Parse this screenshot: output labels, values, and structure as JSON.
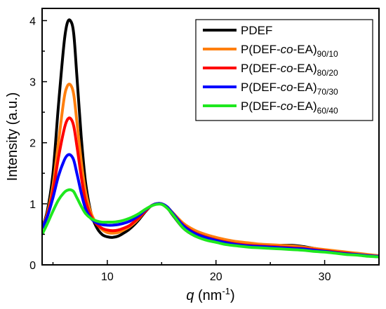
{
  "chart_data": {
    "type": "line",
    "xlabel": {
      "symbol": "q",
      "rest": " (nm",
      "sup": "-1",
      "close": ")"
    },
    "ylabel": "Intensity (a.u.)",
    "xlim": [
      4,
      35
    ],
    "ylim": [
      0,
      4.2
    ],
    "xticks": [
      10,
      20,
      30
    ],
    "xticks_minor": [
      5,
      15,
      25,
      35
    ],
    "yticks": [
      0,
      1,
      2,
      3,
      4
    ],
    "yticks_minor": [
      0.5,
      1.5,
      2.5,
      3.5
    ],
    "legend_position": "top-right",
    "series": [
      {
        "name": "PDEF",
        "legend_parts": [
          {
            "t": "PDEF"
          }
        ],
        "color": "#000000",
        "x": [
          4,
          4.5,
          5,
          5.5,
          6,
          6.3,
          6.6,
          6.9,
          7.2,
          7.6,
          8,
          8.5,
          9,
          9.5,
          10,
          10.5,
          11,
          11.5,
          12,
          12.5,
          13,
          13.5,
          14,
          14.5,
          15,
          15.5,
          16,
          17,
          18,
          19,
          20,
          21,
          22,
          23,
          24,
          25,
          26,
          27,
          28,
          29,
          30,
          31,
          32,
          33,
          34,
          35
        ],
        "y": [
          0.6,
          0.9,
          1.5,
          2.6,
          3.6,
          3.95,
          4.0,
          3.8,
          3.1,
          2.1,
          1.35,
          0.85,
          0.62,
          0.5,
          0.46,
          0.45,
          0.47,
          0.52,
          0.58,
          0.66,
          0.76,
          0.87,
          0.96,
          1.0,
          1.0,
          0.94,
          0.82,
          0.6,
          0.48,
          0.42,
          0.38,
          0.34,
          0.32,
          0.31,
          0.3,
          0.31,
          0.32,
          0.32,
          0.3,
          0.27,
          0.24,
          0.21,
          0.19,
          0.17,
          0.15,
          0.13
        ]
      },
      {
        "name": "P(DEF-co-EA)90/10",
        "legend_parts": [
          {
            "t": "P(DEF-"
          },
          {
            "t": "co",
            "italic": true
          },
          {
            "t": "-EA)"
          },
          {
            "t": "90/10",
            "sub": true
          }
        ],
        "color": "#ff7f0e",
        "x": [
          4,
          4.5,
          5,
          5.5,
          6,
          6.3,
          6.6,
          6.9,
          7.2,
          7.6,
          8,
          8.5,
          9,
          9.5,
          10,
          10.5,
          11,
          11.5,
          12,
          12.5,
          13,
          13.5,
          14,
          14.5,
          15,
          15.5,
          16,
          17,
          18,
          19,
          20,
          21,
          22,
          23,
          24,
          25,
          26,
          27,
          28,
          29,
          30,
          31,
          32,
          33,
          34,
          35
        ],
        "y": [
          0.6,
          0.85,
          1.3,
          2.0,
          2.7,
          2.92,
          2.95,
          2.8,
          2.35,
          1.7,
          1.2,
          0.85,
          0.68,
          0.58,
          0.53,
          0.52,
          0.53,
          0.57,
          0.62,
          0.69,
          0.78,
          0.88,
          0.96,
          1.0,
          1.0,
          0.95,
          0.86,
          0.68,
          0.57,
          0.5,
          0.45,
          0.41,
          0.38,
          0.36,
          0.34,
          0.33,
          0.32,
          0.31,
          0.29,
          0.27,
          0.25,
          0.23,
          0.21,
          0.19,
          0.17,
          0.15
        ]
      },
      {
        "name": "P(DEF-co-EA)80/20",
        "legend_parts": [
          {
            "t": "P(DEF-"
          },
          {
            "t": "co",
            "italic": true
          },
          {
            "t": "-EA)"
          },
          {
            "t": "80/20",
            "sub": true
          }
        ],
        "color": "#ff0000",
        "x": [
          4,
          4.5,
          5,
          5.5,
          6,
          6.3,
          6.6,
          6.9,
          7.2,
          7.6,
          8,
          8.5,
          9,
          9.5,
          10,
          10.5,
          11,
          11.5,
          12,
          12.5,
          13,
          13.5,
          14,
          14.5,
          15,
          15.5,
          16,
          17,
          18,
          19,
          20,
          21,
          22,
          23,
          24,
          25,
          26,
          27,
          28,
          29,
          30,
          31,
          32,
          33,
          34,
          35
        ],
        "y": [
          0.6,
          0.82,
          1.2,
          1.75,
          2.2,
          2.37,
          2.4,
          2.28,
          1.95,
          1.45,
          1.05,
          0.8,
          0.67,
          0.6,
          0.57,
          0.56,
          0.57,
          0.6,
          0.64,
          0.71,
          0.79,
          0.88,
          0.96,
          1.0,
          1.0,
          0.95,
          0.85,
          0.65,
          0.53,
          0.46,
          0.41,
          0.37,
          0.34,
          0.32,
          0.31,
          0.3,
          0.29,
          0.28,
          0.27,
          0.25,
          0.23,
          0.21,
          0.19,
          0.17,
          0.15,
          0.14
        ]
      },
      {
        "name": "P(DEF-co-EA)70/30",
        "legend_parts": [
          {
            "t": "P(DEF-"
          },
          {
            "t": "co",
            "italic": true
          },
          {
            "t": "-EA)"
          },
          {
            "t": "70/30",
            "sub": true
          }
        ],
        "color": "#0000ff",
        "x": [
          4,
          4.5,
          5,
          5.5,
          6,
          6.3,
          6.6,
          6.9,
          7.2,
          7.6,
          8,
          8.5,
          9,
          9.5,
          10,
          10.5,
          11,
          11.5,
          12,
          12.5,
          13,
          13.5,
          14,
          14.5,
          15,
          15.5,
          16,
          17,
          18,
          19,
          20,
          21,
          22,
          23,
          24,
          25,
          26,
          27,
          28,
          29,
          30,
          31,
          32,
          33,
          34,
          35
        ],
        "y": [
          0.6,
          0.8,
          1.1,
          1.45,
          1.7,
          1.79,
          1.8,
          1.72,
          1.5,
          1.18,
          0.92,
          0.76,
          0.69,
          0.66,
          0.65,
          0.65,
          0.66,
          0.68,
          0.71,
          0.76,
          0.82,
          0.9,
          0.96,
          1.0,
          1.0,
          0.95,
          0.85,
          0.64,
          0.52,
          0.45,
          0.4,
          0.36,
          0.33,
          0.31,
          0.3,
          0.29,
          0.28,
          0.27,
          0.26,
          0.24,
          0.22,
          0.2,
          0.18,
          0.17,
          0.15,
          0.14
        ]
      },
      {
        "name": "P(DEF-co-EA)60/40",
        "legend_parts": [
          {
            "t": "P(DEF-"
          },
          {
            "t": "co",
            "italic": true
          },
          {
            "t": "-EA)"
          },
          {
            "t": "60/40",
            "sub": true
          }
        ],
        "color": "#1ee81e",
        "x": [
          4,
          4.5,
          5,
          5.5,
          6,
          6.3,
          6.6,
          6.9,
          7.2,
          7.6,
          8,
          8.5,
          9,
          9.5,
          10,
          10.5,
          11,
          11.5,
          12,
          12.5,
          13,
          13.5,
          14,
          14.5,
          15,
          15.5,
          16,
          17,
          18,
          19,
          20,
          21,
          22,
          23,
          24,
          25,
          26,
          27,
          28,
          29,
          30,
          31,
          32,
          33,
          34,
          35
        ],
        "y": [
          0.5,
          0.68,
          0.88,
          1.06,
          1.18,
          1.22,
          1.23,
          1.2,
          1.1,
          0.96,
          0.84,
          0.76,
          0.72,
          0.7,
          0.7,
          0.7,
          0.71,
          0.73,
          0.76,
          0.8,
          0.85,
          0.91,
          0.96,
          0.99,
          0.99,
          0.93,
          0.83,
          0.6,
          0.48,
          0.41,
          0.37,
          0.33,
          0.31,
          0.29,
          0.28,
          0.27,
          0.26,
          0.25,
          0.24,
          0.22,
          0.21,
          0.19,
          0.17,
          0.16,
          0.14,
          0.13
        ]
      }
    ]
  }
}
